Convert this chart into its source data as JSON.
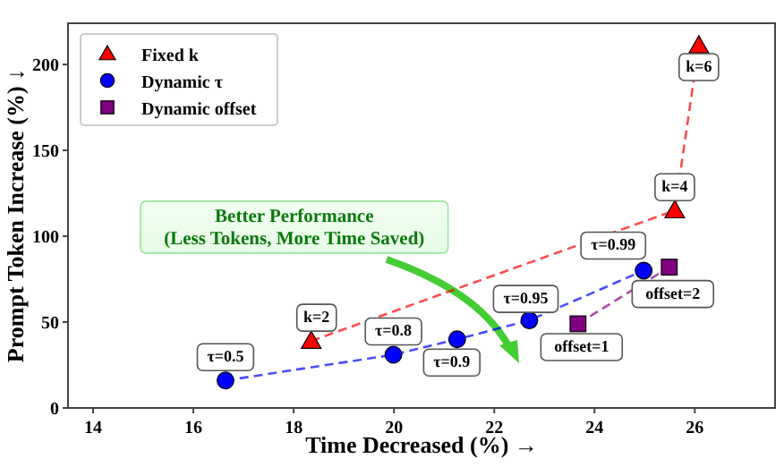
{
  "chart_data": {
    "type": "scatter",
    "xlabel": "Time Decreased (%) →",
    "ylabel": "Prompt Token Increase (%) ↓",
    "xlim": [
      13.5,
      27.6
    ],
    "ylim": [
      0,
      224
    ],
    "xticks": [
      14,
      16,
      18,
      20,
      22,
      24,
      26
    ],
    "yticks": [
      0,
      50,
      100,
      150,
      200
    ],
    "grid": false,
    "legend": "top left",
    "line_style": "dashed",
    "series": [
      {
        "name": "Fixed k",
        "color": "#ff0000",
        "marker": "triangle",
        "x": [
          18.35,
          25.6,
          26.08
        ],
        "values": [
          39,
          115,
          211
        ]
      },
      {
        "name": "Dynamic τ",
        "color": "#0000ff",
        "marker": "circle",
        "x": [
          16.64,
          19.99,
          21.26,
          22.7,
          24.98
        ],
        "values": [
          16,
          31,
          40,
          51,
          80
        ]
      },
      {
        "name": "Dynamic offset",
        "color": "#800080",
        "marker": "square",
        "x": [
          23.67,
          25.49
        ],
        "values": [
          49,
          82
        ]
      }
    ],
    "annotations": [
      {
        "text": "k=2",
        "x": 18.35,
        "y": 39
      },
      {
        "text": "k=4",
        "x": 25.6,
        "y": 115
      },
      {
        "text": "k=6",
        "x": 26.08,
        "y": 211
      },
      {
        "text": "τ=0.5",
        "x": 16.64,
        "y": 16
      },
      {
        "text": "τ=0.8",
        "x": 19.99,
        "y": 31
      },
      {
        "text": "τ=0.9",
        "x": 21.26,
        "y": 40
      },
      {
        "text": "τ=0.95",
        "x": 22.7,
        "y": 51
      },
      {
        "text": "τ=0.99",
        "x": 24.98,
        "y": 80
      },
      {
        "text": "offset=1",
        "x": 23.67,
        "y": 49
      },
      {
        "text": "offset=2",
        "x": 25.49,
        "y": 82
      },
      "Better Performance\n(Less Tokens, More Time Saved)"
    ]
  }
}
